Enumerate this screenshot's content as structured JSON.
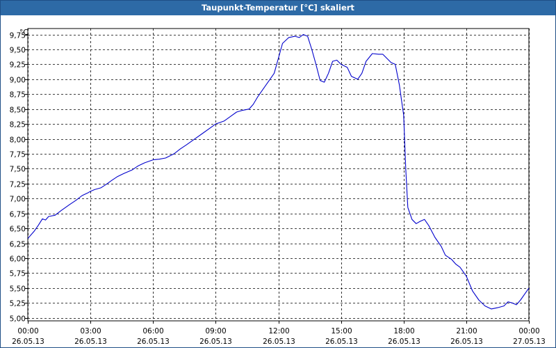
{
  "window": {
    "title": "Taupunkt-Temperatur [°C] skaliert"
  },
  "chart_data": {
    "type": "line",
    "title": "Taupunkt-Temperatur [°C] skaliert",
    "ylabel": "°C",
    "xlabel": "",
    "ylim": [
      4.95,
      9.85
    ],
    "xlim": [
      0,
      24
    ],
    "grid": true,
    "line_color": "#0000cc",
    "y_ticks": [
      "5,00",
      "5,25",
      "5,50",
      "5,75",
      "6,00",
      "6,25",
      "6,50",
      "6,75",
      "7,00",
      "7,25",
      "7,50",
      "7,75",
      "8,00",
      "8,25",
      "8,50",
      "8,75",
      "9,00",
      "9,25",
      "9,50",
      "9,75"
    ],
    "y_tick_values": [
      5.0,
      5.25,
      5.5,
      5.75,
      6.0,
      6.25,
      6.5,
      6.75,
      7.0,
      7.25,
      7.5,
      7.75,
      8.0,
      8.25,
      8.5,
      8.75,
      9.0,
      9.25,
      9.5,
      9.75
    ],
    "x_ticks": [
      {
        "time": "00:00",
        "date": "26.05.13",
        "hour": 0
      },
      {
        "time": "03:00",
        "date": "26.05.13",
        "hour": 3
      },
      {
        "time": "06:00",
        "date": "26.05.13",
        "hour": 6
      },
      {
        "time": "09:00",
        "date": "26.05.13",
        "hour": 9
      },
      {
        "time": "12:00",
        "date": "26.05.13",
        "hour": 12
      },
      {
        "time": "15:00",
        "date": "26.05.13",
        "hour": 15
      },
      {
        "time": "18:00",
        "date": "26.05.13",
        "hour": 18
      },
      {
        "time": "21:00",
        "date": "26.05.13",
        "hour": 21
      },
      {
        "time": "00:00",
        "date": "27.05.13",
        "hour": 24
      }
    ],
    "series": [
      {
        "x": [
          0,
          0.3,
          0.5,
          0.7,
          0.85,
          1.0,
          1.3,
          1.6,
          2.0,
          2.3,
          2.6,
          2.9,
          3.0,
          3.2,
          3.5,
          3.8,
          4.0,
          4.3,
          4.6,
          5.0,
          5.3,
          5.6,
          6.0,
          6.3,
          6.6,
          7.0,
          7.3,
          7.6,
          8.0,
          8.4,
          8.8,
          9.0,
          9.4,
          9.8,
          10.0,
          10.3,
          10.6,
          10.8,
          11.0,
          11.3,
          11.6,
          11.8,
          12.0,
          12.2,
          12.5,
          12.8,
          13.0,
          13.2,
          13.4,
          13.6,
          13.8,
          14.0,
          14.2,
          14.4,
          14.6,
          14.8,
          15.0,
          15.3,
          15.5,
          15.8,
          16.0,
          16.2,
          16.5,
          16.8,
          17.0,
          17.2,
          17.4,
          17.6,
          17.8,
          17.9,
          18.0,
          18.1,
          18.2,
          18.4,
          18.6,
          18.8,
          19.0,
          19.2,
          19.5,
          19.8,
          20.0,
          20.3,
          20.5,
          20.7,
          21.0,
          21.3,
          21.6,
          21.9,
          22.2,
          22.5,
          22.8,
          23.0,
          23.2,
          23.4,
          23.6,
          23.8,
          24.0
        ],
        "y": [
          6.33,
          6.45,
          6.55,
          6.66,
          6.64,
          6.7,
          6.72,
          6.8,
          6.9,
          6.97,
          7.05,
          7.1,
          7.12,
          7.15,
          7.18,
          7.25,
          7.3,
          7.37,
          7.42,
          7.48,
          7.55,
          7.6,
          7.65,
          7.66,
          7.68,
          7.75,
          7.83,
          7.9,
          8.0,
          8.1,
          8.2,
          8.25,
          8.3,
          8.4,
          8.45,
          8.48,
          8.5,
          8.58,
          8.7,
          8.85,
          9.0,
          9.1,
          9.35,
          9.6,
          9.7,
          9.72,
          9.7,
          9.75,
          9.72,
          9.5,
          9.25,
          8.98,
          8.95,
          9.1,
          9.3,
          9.32,
          9.25,
          9.2,
          9.05,
          9.0,
          9.1,
          9.3,
          9.43,
          9.42,
          9.42,
          9.35,
          9.28,
          9.25,
          8.9,
          8.65,
          8.4,
          7.5,
          6.85,
          6.65,
          6.58,
          6.62,
          6.65,
          6.55,
          6.35,
          6.2,
          6.05,
          5.98,
          5.9,
          5.85,
          5.7,
          5.45,
          5.3,
          5.2,
          5.15,
          5.17,
          5.2,
          5.27,
          5.25,
          5.22,
          5.3,
          5.4,
          5.5
        ]
      }
    ]
  }
}
